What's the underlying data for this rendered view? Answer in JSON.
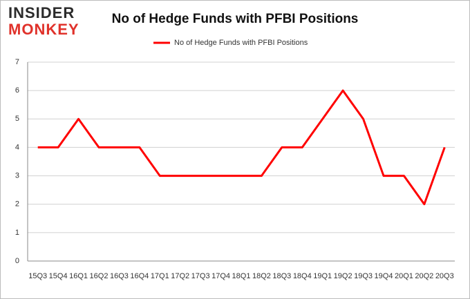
{
  "logo": {
    "top": "INSIDER",
    "bottom": "MONKEY"
  },
  "chart_data": {
    "type": "line",
    "title": "No of Hedge Funds with PFBI Positions",
    "categories": [
      "15Q3",
      "15Q4",
      "16Q1",
      "16Q2",
      "16Q3",
      "16Q4",
      "17Q1",
      "17Q2",
      "17Q3",
      "17Q4",
      "18Q1",
      "18Q2",
      "18Q3",
      "18Q4",
      "19Q1",
      "19Q2",
      "19Q3",
      "19Q4",
      "20Q1",
      "20Q2",
      "20Q3"
    ],
    "series": [
      {
        "name": "No of Hedge Funds with PFBI Positions",
        "color": "#ff0000",
        "values": [
          4,
          4,
          5,
          4,
          4,
          4,
          3,
          3,
          3,
          3,
          3,
          3,
          4,
          4,
          5,
          6,
          5,
          3,
          3,
          2,
          4
        ]
      }
    ],
    "ylim": [
      0,
      7
    ],
    "yticks": [
      0,
      1,
      2,
      3,
      4,
      5,
      6,
      7
    ],
    "grid": true,
    "legend": "top"
  }
}
